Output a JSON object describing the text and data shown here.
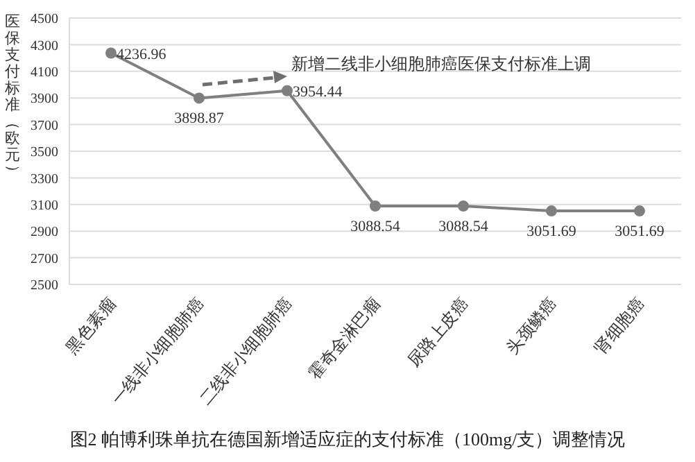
{
  "chart_data": {
    "type": "line",
    "title": "图2 帕博利珠单抗在德国新增适应症的支付标准（100mg/支）调整情况",
    "ylabel": "医保支付标准（欧元）",
    "categories": [
      "黑色素瘤",
      "一线非小细胞肺癌",
      "二线非小细胞肺癌",
      "霍奇金淋巴瘤",
      "尿路上皮癌",
      "头颈鳞癌",
      "肾细胞癌"
    ],
    "series": [
      {
        "color": "#7f7f7f",
        "values": [
          4236.96,
          3898.87,
          3954.44,
          3088.54,
          3088.54,
          3051.69,
          3051.69
        ]
      }
    ],
    "ylim": [
      2500,
      4500
    ],
    "yticks": [
      2500,
      2700,
      2900,
      3100,
      3300,
      3500,
      3700,
      3900,
      4100,
      4300,
      4500
    ],
    "grid": "y",
    "marker": "circle",
    "line_style": "solid",
    "data_labels": true,
    "annotations": [
      "新增二线非小细胞肺癌医保支付标准上调"
    ]
  }
}
